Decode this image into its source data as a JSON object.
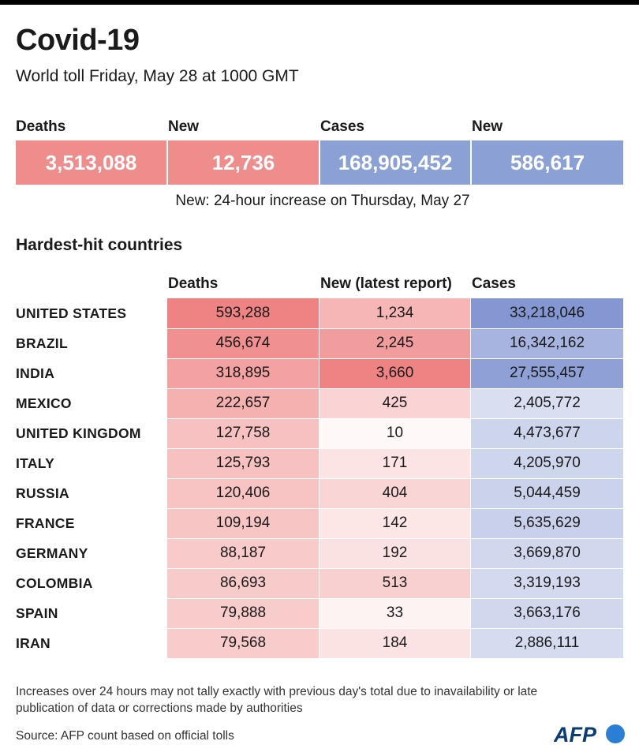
{
  "title": "Covid-19",
  "subtitle": "World toll Friday, May 28 at 1000 GMT",
  "kpis": [
    {
      "label": "Deaths",
      "value": "3,513,088",
      "color": "#ef8c8c"
    },
    {
      "label": "New",
      "value": "12,736",
      "color": "#ef8c8c"
    },
    {
      "label": "Cases",
      "value": "168,905,452",
      "color": "#8ba0d4"
    },
    {
      "label": "New",
      "value": "586,617",
      "color": "#8ba0d4"
    }
  ],
  "kpi_note": "New: 24-hour increase on Thursday, May 27",
  "section_title": "Hardest-hit countries",
  "footnote": "Increases over 24 hours may not tally exactly with previous day's total due to inavailability or late publication of data or corrections made by authorities",
  "source": "Source: AFP count based on official tolls",
  "logo_text": "AFP",
  "colors": {
    "deaths": "#ef8282",
    "cases": "#8497d2"
  },
  "chart_data": {
    "type": "table",
    "columns": [
      "Deaths",
      "New (latest report)",
      "Cases"
    ],
    "rows": [
      {
        "country": "UNITED STATES",
        "deaths": "593,288",
        "new": "1,234",
        "cases": "33,218,046"
      },
      {
        "country": "BRAZIL",
        "deaths": "456,674",
        "new": "2,245",
        "cases": "16,342,162"
      },
      {
        "country": "INDIA",
        "deaths": "318,895",
        "new": "3,660",
        "cases": "27,555,457"
      },
      {
        "country": "MEXICO",
        "deaths": "222,657",
        "new": "425",
        "cases": "2,405,772"
      },
      {
        "country": "UNITED KINGDOM",
        "deaths": "127,758",
        "new": "10",
        "cases": "4,473,677"
      },
      {
        "country": "ITALY",
        "deaths": "125,793",
        "new": "171",
        "cases": "4,205,970"
      },
      {
        "country": "RUSSIA",
        "deaths": "120,406",
        "new": "404",
        "cases": "5,044,459"
      },
      {
        "country": "FRANCE",
        "deaths": "109,194",
        "new": "142",
        "cases": "5,635,629"
      },
      {
        "country": "GERMANY",
        "deaths": "88,187",
        "new": "192",
        "cases": "3,669,870"
      },
      {
        "country": "COLOMBIA",
        "deaths": "86,693",
        "new": "513",
        "cases": "3,319,193"
      },
      {
        "country": "SPAIN",
        "deaths": "79,888",
        "new": "33",
        "cases": "3,663,176"
      },
      {
        "country": "IRAN",
        "deaths": "79,568",
        "new": "184",
        "cases": "2,886,111"
      }
    ]
  }
}
